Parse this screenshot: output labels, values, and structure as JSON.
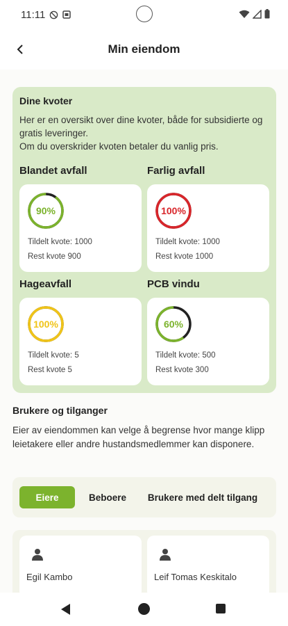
{
  "status_bar": {
    "time": "11:11"
  },
  "app_bar": {
    "title": "Min eiendom"
  },
  "quotas": {
    "title": "Dine kvoter",
    "description_1": "Her er en oversikt over dine kvoter, både for subsidierte og gratis leveringer.",
    "description_2": "Om du overskrider kvoten betaler du vanlig pris.",
    "items": [
      {
        "label": "Blandet avfall",
        "percent": "90%",
        "fraction": 0.9,
        "assigned": "Tildelt kvote: 1000",
        "remaining": "Rest kvote 900",
        "color": "#7cb32d"
      },
      {
        "label": "Farlig avfall",
        "percent": "100%",
        "fraction": 1.0,
        "assigned": "Tildelt kvote: 1000",
        "remaining": "Rest kvote 1000",
        "color": "#d8262b"
      },
      {
        "label": "Hageavfall",
        "percent": "100%",
        "fraction": 1.0,
        "assigned": "Tildelt kvote: 5",
        "remaining": "Rest kvote 5",
        "color": "#f0c419"
      },
      {
        "label": "PCB vindu",
        "percent": "60%",
        "fraction": 0.6,
        "assigned": "Tildelt kvote: 500",
        "remaining": "Rest kvote 300",
        "color": "#7cb32d"
      }
    ]
  },
  "users": {
    "title": "Brukere og tilganger",
    "description": "Eier av eiendommen kan velge å begrense hvor mange klipp leietakere eller andre hustandsmedlemmer kan disponere.",
    "tabs": [
      {
        "label": "Eiere",
        "active": true
      },
      {
        "label": "Beboere",
        "active": false
      },
      {
        "label": "Brukere med delt tilgang",
        "active": false
      }
    ],
    "list": [
      {
        "name": "Egil Kambo",
        "icon": "person-icon"
      },
      {
        "name": "Leif Tomas Keskitalo",
        "icon": "person-icon"
      }
    ]
  },
  "colors": {
    "accent": "#7cb32d",
    "panel_bg": "#d9eac8",
    "ring_track": "#222222"
  }
}
